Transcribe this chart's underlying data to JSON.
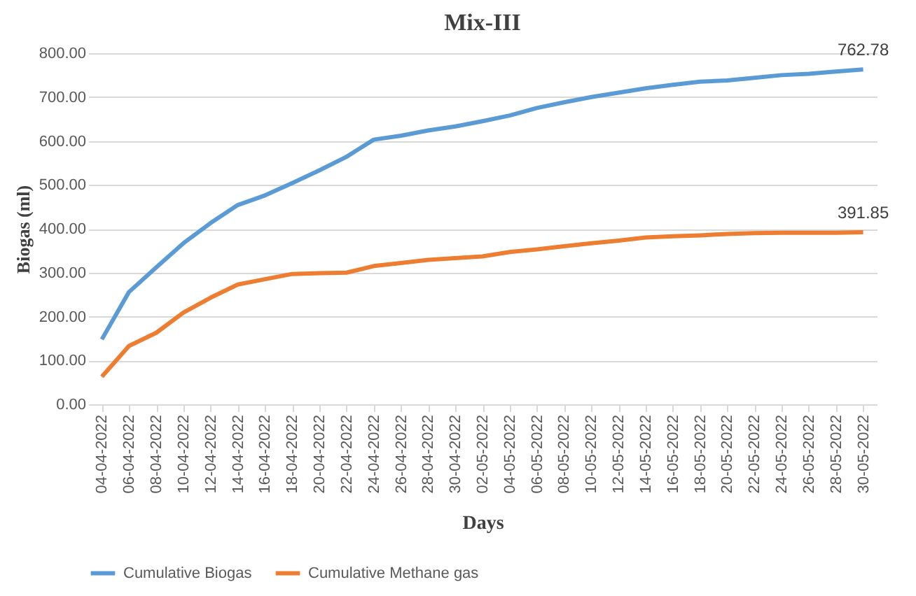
{
  "chart_data": {
    "type": "line",
    "title": "Mix-III",
    "xlabel": "Days",
    "ylabel": "Biogas (ml)",
    "categories": [
      "04-04-2022",
      "06-04-2022",
      "08-04-2022",
      "10-04-2022",
      "12-04-2022",
      "14-04-2022",
      "16-04-2022",
      "18-04-2022",
      "20-04-2022",
      "22-04-2022",
      "24-04-2022",
      "26-04-2022",
      "28-04-2022",
      "30-04-2022",
      "02-05-2022",
      "04-05-2022",
      "06-05-2022",
      "08-05-2022",
      "10-05-2022",
      "12-05-2022",
      "14-05-2022",
      "16-05-2022",
      "18-05-2022",
      "20-05-2022",
      "22-05-2022",
      "24-05-2022",
      "26-05-2022",
      "28-05-2022",
      "30-05-2022"
    ],
    "series": [
      {
        "name": "Cumulative Biogas",
        "color": "#5b9bd5",
        "values": [
          148,
          256,
          312,
          367,
          413,
          454,
          476,
          504,
          533,
          564,
          603,
          612,
          624,
          633,
          645,
          658,
          675,
          688,
          700,
          710,
          720,
          728,
          735,
          738,
          744,
          750,
          753,
          758,
          762.78
        ],
        "value_labels": [
          null,
          null,
          null,
          null,
          null,
          null,
          null,
          null,
          null,
          null,
          null,
          null,
          null,
          null,
          null,
          null,
          null,
          null,
          null,
          null,
          null,
          null,
          null,
          null,
          null,
          null,
          null,
          null,
          "762.78"
        ]
      },
      {
        "name": "Cumulative Methane gas",
        "color": "#ed7d31",
        "values": [
          63,
          133,
          163,
          209,
          243,
          273,
          285,
          297,
          299,
          300,
          315,
          322,
          329,
          333,
          337,
          347,
          353,
          360,
          367,
          373,
          380,
          383,
          385,
          388,
          390,
          391,
          391,
          391,
          391.85
        ],
        "value_labels": [
          null,
          null,
          null,
          null,
          null,
          null,
          null,
          null,
          null,
          null,
          null,
          null,
          null,
          null,
          null,
          null,
          null,
          null,
          null,
          null,
          null,
          null,
          null,
          null,
          null,
          null,
          null,
          null,
          "391.85"
        ]
      }
    ],
    "ylim": [
      0,
      800
    ],
    "yticks": [
      {
        "value": 0,
        "label": "0.00"
      },
      {
        "value": 100,
        "label": "100.00"
      },
      {
        "value": 200,
        "label": "200.00"
      },
      {
        "value": 300,
        "label": "300.00"
      },
      {
        "value": 400,
        "label": "400.00"
      },
      {
        "value": 500,
        "label": "500.00"
      },
      {
        "value": 600,
        "label": "600.00"
      },
      {
        "value": 700,
        "label": "700.00"
      },
      {
        "value": 800,
        "label": "800.00"
      }
    ],
    "grid": "y",
    "legend": "bottom",
    "marker": "none",
    "line_style": "solid"
  }
}
